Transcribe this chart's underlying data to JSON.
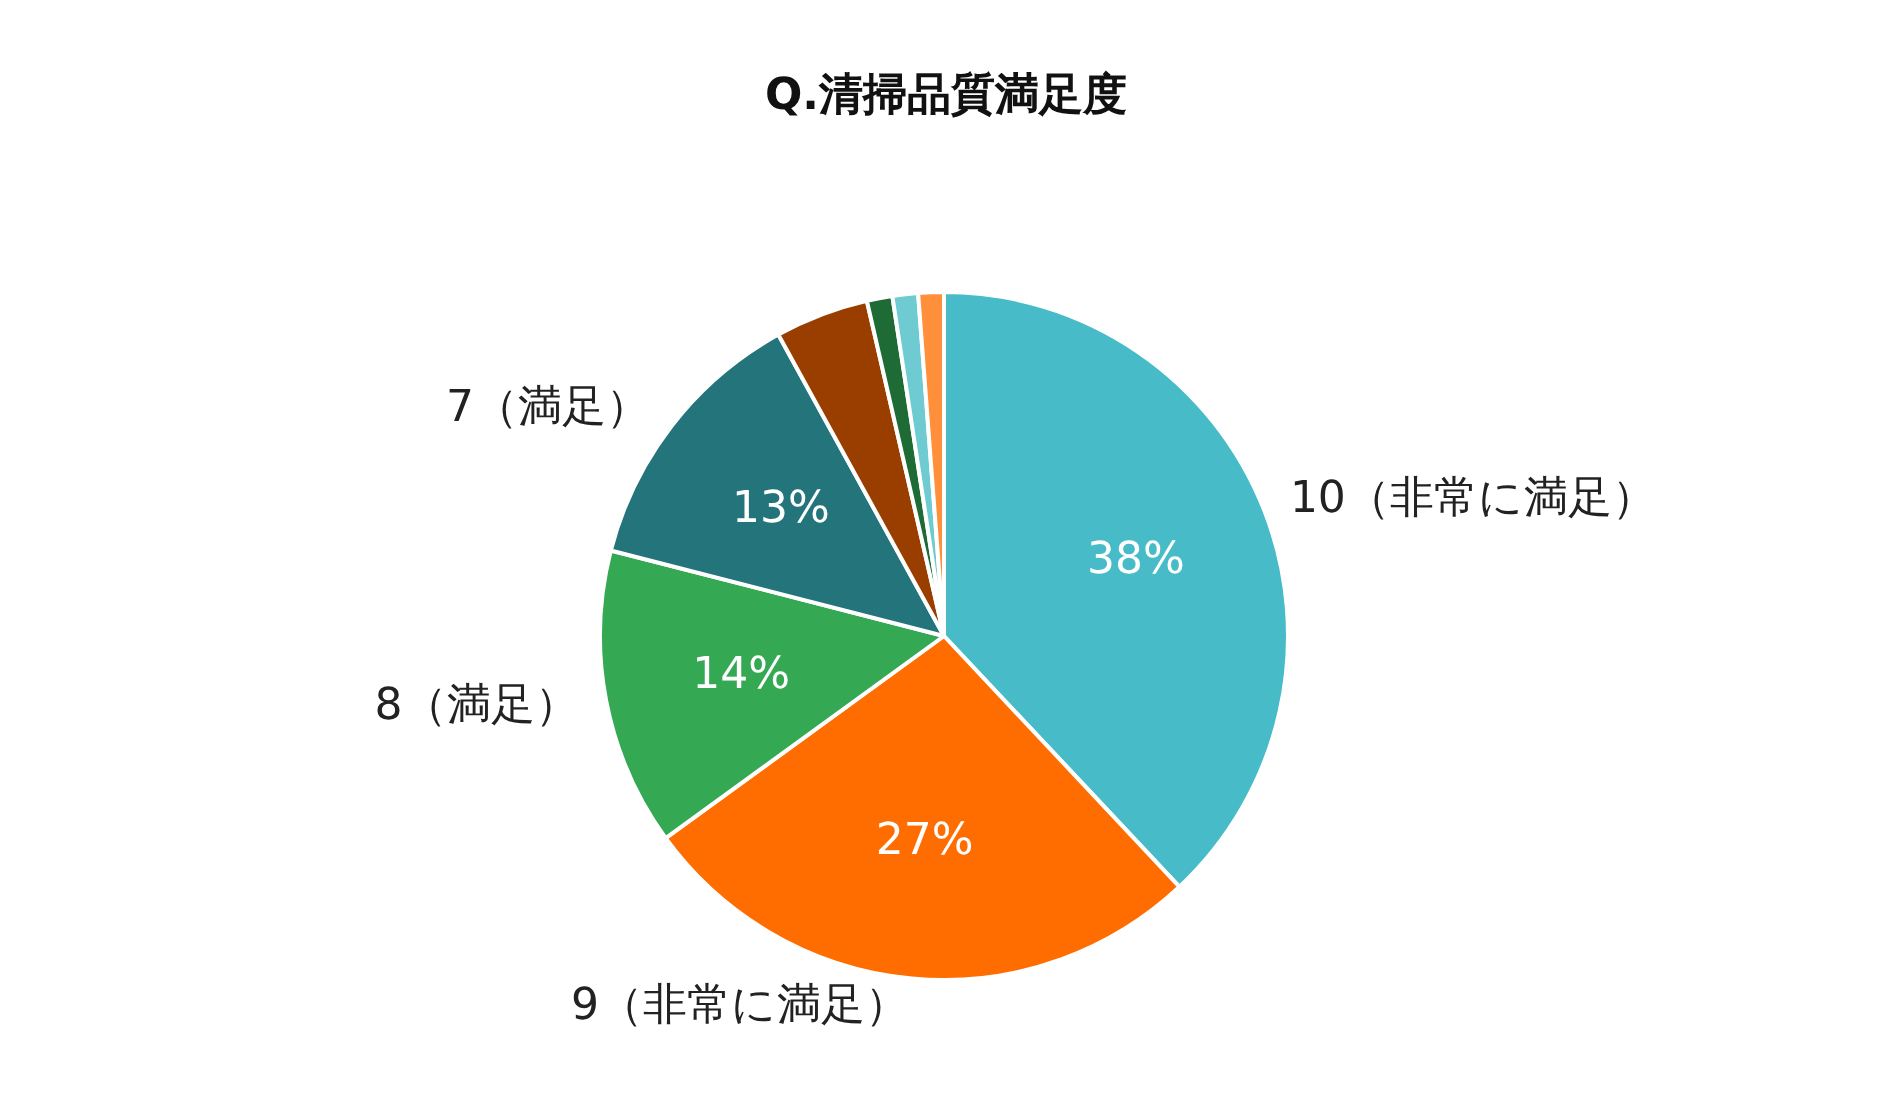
{
  "chart_data": {
    "type": "pie",
    "title": "Q.清掃品質満足度",
    "categories": [
      "10（非常に満足）",
      "9（非常に満足）",
      "8（満足）",
      "7（満足）",
      null,
      null,
      null,
      null
    ],
    "values": [
      38,
      27,
      14,
      13,
      4.4,
      1.2,
      1.2,
      1.2
    ],
    "value_labels": [
      "38%",
      "27%",
      "14%",
      "13%",
      null,
      null,
      null,
      null
    ],
    "colors": [
      "#47bcc8",
      "#ff6d00",
      "#35a853",
      "#24747b",
      "#9a3e00",
      "#1e6b35",
      "#6ecbd2",
      "#ff8f3a"
    ],
    "legend": false
  }
}
